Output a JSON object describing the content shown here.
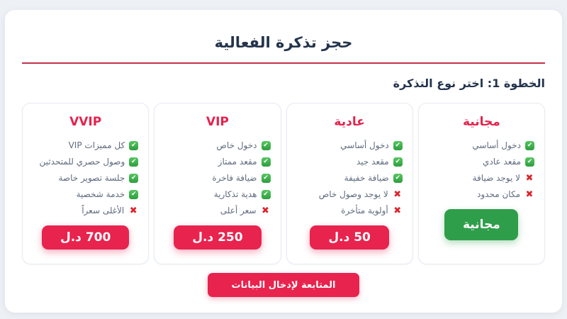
{
  "page": {
    "title": "حجز تذكرة الفعالية",
    "step_heading": "الخطوة 1: اختر نوع التذكرة",
    "continue_label": "المتابعة لإدخال البيانات"
  },
  "icons": {
    "check": "✔",
    "cross": "✖"
  },
  "colors": {
    "accent_red": "#e8234e",
    "title_navy": "#24344d",
    "divider_red": "#c2324b",
    "button_green": "#2f9e4a",
    "check_green": "#3bb04a",
    "cross_red": "#d8262c",
    "feature_text": "#5f6b7e",
    "page_background": "#edf0f5"
  },
  "tickets": [
    {
      "name": "مجانية",
      "price_label": "مجانية",
      "button_style": "green",
      "features": [
        {
          "ok": true,
          "text": "دخول أساسي"
        },
        {
          "ok": true,
          "text": "مقعد عادي"
        },
        {
          "ok": false,
          "text": "لا يوجد ضيافة"
        },
        {
          "ok": false,
          "text": "مكان محدود"
        }
      ]
    },
    {
      "name": "عادية",
      "price_label": "50 د.ل",
      "button_style": "red",
      "features": [
        {
          "ok": true,
          "text": "دخول أساسي"
        },
        {
          "ok": true,
          "text": "مقعد جيد"
        },
        {
          "ok": true,
          "text": "ضيافة خفيفة"
        },
        {
          "ok": false,
          "text": "لا يوجد وصول خاص"
        },
        {
          "ok": false,
          "text": "أولوية متأخرة"
        }
      ]
    },
    {
      "name": "VIP",
      "price_label": "250 د.ل",
      "button_style": "red",
      "features": [
        {
          "ok": true,
          "text": "دخول خاص"
        },
        {
          "ok": true,
          "text": "مقعد ممتاز"
        },
        {
          "ok": true,
          "text": "ضيافة فاخرة"
        },
        {
          "ok": true,
          "text": "هدية تذكارية"
        },
        {
          "ok": false,
          "text": "سعر أعلى"
        }
      ]
    },
    {
      "name": "VVIP",
      "price_label": "700 د.ل",
      "button_style": "red",
      "features": [
        {
          "ok": true,
          "text": "كل مميزات VIP"
        },
        {
          "ok": true,
          "text": "وصول حصري للمتحدثين"
        },
        {
          "ok": true,
          "text": "جلسة تصوير خاصة"
        },
        {
          "ok": true,
          "text": "خدمة شخصية"
        },
        {
          "ok": false,
          "text": "الأغلى سعراً"
        }
      ]
    }
  ]
}
